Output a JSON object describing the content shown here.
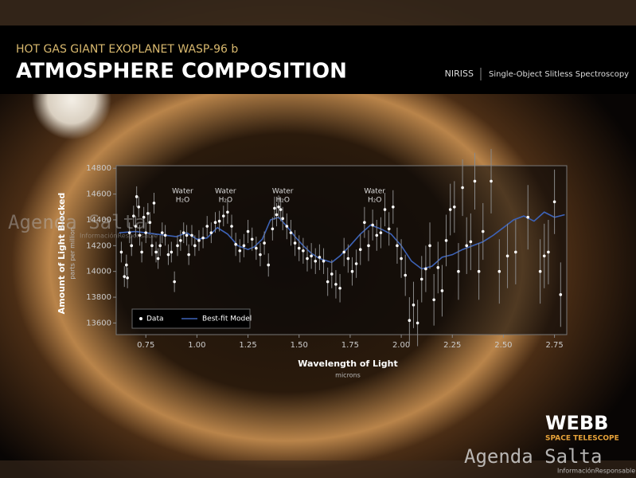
{
  "header": {
    "kicker": "HOT GAS GIANT EXOPLANET WASP-96 b",
    "title": "ATMOSPHERE COMPOSITION",
    "instrument": "NIRISS",
    "mode": "Single-Object Slitless Spectroscopy"
  },
  "logo": {
    "name": "WEBB",
    "subtitle": "SPACE TELESCOPE"
  },
  "watermark": {
    "name": "Agenda Salta",
    "tagline": "InformaciónResponsable"
  },
  "chart_data": {
    "type": "scatter",
    "xlabel": "Wavelength of Light",
    "xunit": "microns",
    "ylabel": "Amount of Light Blocked",
    "yunit": "parts per million",
    "xlim": [
      0.605,
      2.81
    ],
    "ylim": [
      13510,
      14820
    ],
    "xticks": [
      0.75,
      {
        "value": 1,
        "label": "1.00"
      },
      1.25,
      {
        "value": 1.5,
        "label": "1.50"
      },
      1.75,
      {
        "value": 2,
        "label": "2.00"
      },
      2.25,
      {
        "value": 2.5,
        "label": "2.50"
      },
      2.75
    ],
    "yticks": [
      13600,
      13800,
      14000,
      14200,
      14400,
      14600,
      14800
    ],
    "legend": "lower left",
    "annotations": [
      {
        "text": "Water",
        "subtext": "H₂O",
        "x": 0.93
      },
      {
        "text": "Water",
        "subtext": "H₂O",
        "x": 1.14
      },
      {
        "text": "Water",
        "subtext": "H₂O",
        "x": 1.42
      },
      {
        "text": "Water",
        "subtext": "H₂O",
        "x": 1.87
      }
    ],
    "series": [
      {
        "name": "Data",
        "color": "#ffffff",
        "x": [
          0.63,
          0.645,
          0.655,
          0.66,
          0.67,
          0.68,
          0.69,
          0.7,
          0.705,
          0.715,
          0.72,
          0.73,
          0.74,
          0.75,
          0.76,
          0.77,
          0.78,
          0.79,
          0.8,
          0.81,
          0.82,
          0.83,
          0.845,
          0.86,
          0.875,
          0.89,
          0.905,
          0.92,
          0.935,
          0.95,
          0.96,
          0.975,
          0.99,
          1.01,
          1.03,
          1.05,
          1.07,
          1.09,
          1.11,
          1.13,
          1.15,
          1.17,
          1.19,
          1.21,
          1.23,
          1.25,
          1.27,
          1.29,
          1.31,
          1.33,
          1.35,
          1.37,
          1.38,
          1.39,
          1.4,
          1.41,
          1.42,
          1.44,
          1.46,
          1.48,
          1.5,
          1.52,
          1.54,
          1.56,
          1.58,
          1.6,
          1.62,
          1.64,
          1.66,
          1.68,
          1.7,
          1.72,
          1.74,
          1.76,
          1.78,
          1.8,
          1.82,
          1.84,
          1.86,
          1.88,
          1.9,
          1.92,
          1.94,
          1.96,
          1.98,
          2.0,
          2.02,
          2.04,
          2.06,
          2.08,
          2.1,
          2.12,
          2.14,
          2.16,
          2.18,
          2.2,
          2.22,
          2.24,
          2.26,
          2.28,
          2.3,
          2.32,
          2.34,
          2.36,
          2.38,
          2.4,
          2.44,
          2.48,
          2.52,
          2.56,
          2.62,
          2.68,
          2.7,
          2.72,
          2.75,
          2.78
        ],
        "values": [
          14150,
          13960,
          14050,
          13950,
          14300,
          14200,
          14430,
          14350,
          14580,
          14500,
          14280,
          14150,
          14420,
          14300,
          14450,
          14380,
          14200,
          14530,
          14150,
          14100,
          14200,
          14300,
          14280,
          14130,
          14150,
          13920,
          14200,
          14240,
          14300,
          14280,
          14130,
          14280,
          14200,
          14240,
          14260,
          14350,
          14300,
          14380,
          14390,
          14430,
          14460,
          14350,
          14210,
          14160,
          14200,
          14310,
          14250,
          14180,
          14130,
          14220,
          14050,
          14330,
          14490,
          14440,
          14500,
          14480,
          14410,
          14350,
          14300,
          14220,
          14180,
          14160,
          14100,
          14120,
          14080,
          14110,
          14080,
          13920,
          13980,
          13900,
          13870,
          14150,
          14100,
          14000,
          14060,
          14170,
          14380,
          14200,
          14360,
          14280,
          14300,
          14480,
          14330,
          14500,
          14200,
          14100,
          13970,
          13620,
          13740,
          13600,
          13940,
          14020,
          14200,
          13780,
          14030,
          13850,
          14240,
          14480,
          14500,
          14000,
          14650,
          14200,
          14230,
          14700,
          14000,
          14310,
          14700,
          14000,
          14120,
          14150,
          14420,
          14000,
          14120,
          14150,
          14540,
          13820
        ],
        "errors": [
          80,
          80,
          80,
          80,
          80,
          80,
          80,
          80,
          80,
          80,
          80,
          80,
          80,
          80,
          80,
          80,
          80,
          80,
          80,
          80,
          80,
          80,
          80,
          80,
          80,
          80,
          80,
          80,
          80,
          80,
          80,
          80,
          80,
          80,
          80,
          80,
          80,
          80,
          80,
          80,
          90,
          90,
          90,
          90,
          90,
          90,
          90,
          90,
          90,
          90,
          90,
          90,
          90,
          90,
          90,
          90,
          90,
          100,
          100,
          100,
          100,
          100,
          100,
          100,
          100,
          100,
          100,
          110,
          110,
          110,
          110,
          110,
          110,
          110,
          110,
          120,
          120,
          120,
          120,
          120,
          120,
          130,
          130,
          130,
          140,
          150,
          160,
          180,
          180,
          180,
          180,
          180,
          180,
          200,
          200,
          200,
          200,
          200,
          200,
          220,
          220,
          220,
          220,
          220,
          220,
          220,
          250,
          250,
          250,
          250,
          250,
          250,
          250,
          250,
          250,
          250
        ]
      },
      {
        "name": "Best-fit Model",
        "color": "#3d63b8",
        "x": [
          0.62,
          0.7,
          0.8,
          0.9,
          0.95,
          1.0,
          1.05,
          1.1,
          1.15,
          1.2,
          1.25,
          1.28,
          1.32,
          1.36,
          1.4,
          1.44,
          1.48,
          1.52,
          1.56,
          1.6,
          1.66,
          1.7,
          1.75,
          1.8,
          1.85,
          1.9,
          1.95,
          2.0,
          2.05,
          2.1,
          2.15,
          2.2,
          2.25,
          2.3,
          2.35,
          2.4,
          2.45,
          2.5,
          2.55,
          2.6,
          2.65,
          2.7,
          2.75,
          2.8
        ],
        "values": [
          14300,
          14310,
          14290,
          14270,
          14300,
          14250,
          14260,
          14340,
          14290,
          14200,
          14170,
          14190,
          14250,
          14400,
          14420,
          14350,
          14270,
          14200,
          14140,
          14100,
          14070,
          14120,
          14200,
          14290,
          14360,
          14330,
          14290,
          14200,
          14080,
          14020,
          14040,
          14110,
          14130,
          14170,
          14200,
          14230,
          14280,
          14340,
          14400,
          14430,
          14390,
          14460,
          14420,
          14440
        ]
      }
    ]
  }
}
